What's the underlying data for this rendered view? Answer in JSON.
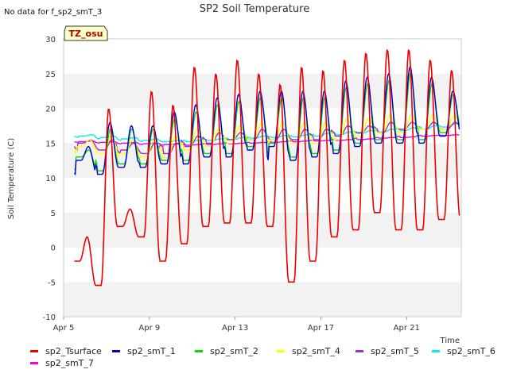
{
  "header": {
    "nodata_note": "No data for f_sp2_smT_3",
    "badge": "TZ_osu"
  },
  "chart_data": {
    "type": "line",
    "title": "SP2 Soil Temperature",
    "xlabel": "Time",
    "ylabel": "Soil Temperature (C)",
    "ylim": [
      -10,
      30
    ],
    "yticks": [
      -10,
      -5,
      0,
      5,
      10,
      15,
      20,
      25,
      30
    ],
    "xlim": [
      "Apr 5",
      "Apr 23"
    ],
    "xticks": [
      "Apr 5",
      "Apr 9",
      "Apr 13",
      "Apr 17",
      "Apr 21"
    ],
    "grid": "horizontal alternating bands",
    "legend_position": "bottom",
    "days_x": [
      "Apr 5",
      "Apr 6",
      "Apr 7",
      "Apr 8",
      "Apr 9",
      "Apr 10",
      "Apr 11",
      "Apr 12",
      "Apr 13",
      "Apr 14",
      "Apr 15",
      "Apr 16",
      "Apr 17",
      "Apr 18",
      "Apr 19",
      "Apr 20",
      "Apr 21",
      "Apr 22"
    ],
    "series": [
      {
        "name": "sp2_Tsurface",
        "color": "#ee0000",
        "daily_min": [
          -2,
          -5.5,
          3,
          1.5,
          -2,
          0.5,
          3,
          3.5,
          3.5,
          3,
          -5,
          -2,
          1.5,
          2.5,
          5,
          2.5,
          2.5,
          4
        ],
        "daily_max": [
          1.5,
          20,
          5.5,
          22.5,
          20.5,
          26,
          25,
          27,
          25,
          23.5,
          26,
          25.5,
          27,
          28,
          28.5,
          28.5,
          27,
          25.5
        ]
      },
      {
        "name": "sp2_smT_1",
        "color": "#0000cc",
        "daily_min": [
          12.5,
          10.5,
          11.5,
          11.5,
          12,
          12,
          13,
          13,
          14,
          14.5,
          12.5,
          13,
          13.5,
          14.5,
          15,
          15,
          15,
          16
        ],
        "daily_max": [
          14.5,
          18,
          17.5,
          17.5,
          19.5,
          20.5,
          21.5,
          22,
          22.5,
          22.5,
          22.5,
          22.5,
          24,
          24.5,
          25,
          26,
          24.5,
          22.5
        ]
      },
      {
        "name": "sp2_smT_2",
        "color": "#00dd00",
        "daily_min": [
          13,
          11,
          12,
          12,
          12.5,
          12.5,
          13.5,
          13.5,
          14.5,
          15,
          13,
          13.5,
          14,
          15,
          15.5,
          15.5,
          15.5,
          16.5
        ],
        "daily_max": [
          14,
          17,
          17,
          17,
          18.5,
          19.5,
          20.5,
          21,
          21.5,
          21.5,
          21.5,
          21.5,
          23,
          23.5,
          24,
          25,
          23.5,
          22
        ]
      },
      {
        "name": "sp2_smT_4",
        "color": "#ffff00",
        "daily_min": [
          14.5,
          13.5,
          13.5,
          13,
          13,
          14,
          14.5,
          15,
          15.5,
          15.5,
          15,
          15,
          15.5,
          16,
          16.5,
          16.5,
          17,
          17
        ],
        "daily_max": [
          15.5,
          16,
          15.5,
          15.5,
          16,
          17,
          17,
          17.5,
          18,
          18,
          18,
          18,
          18.5,
          18.5,
          19,
          19,
          19,
          19
        ]
      },
      {
        "name": "sp2_smT_5",
        "color": "#9932cc",
        "daily_min": [
          15,
          14,
          14,
          13.5,
          13.5,
          14.5,
          15,
          15.5,
          15.5,
          15.5,
          15.5,
          15.5,
          16,
          16.5,
          16.5,
          17,
          17,
          17
        ],
        "daily_max": [
          15.5,
          15.5,
          15,
          15,
          15,
          16,
          16.5,
          16.5,
          17,
          17,
          17,
          17,
          17.5,
          17.5,
          18,
          18,
          18,
          18
        ]
      },
      {
        "name": "sp2_smT_6",
        "color": "#00eeee",
        "daily_min": [
          16,
          15.8,
          15.6,
          15.4,
          15.2,
          15.2,
          15.4,
          15.5,
          15.7,
          15.8,
          15.9,
          16,
          16.2,
          16.4,
          16.6,
          16.8,
          17,
          17.3
        ],
        "daily_max": [
          16.2,
          16,
          15.8,
          15.6,
          15.4,
          15.4,
          15.6,
          15.8,
          16,
          16.1,
          16.2,
          16.4,
          16.6,
          16.8,
          17,
          17.2,
          17.5,
          17.8
        ]
      },
      {
        "name": "sp2_smT_7",
        "color": "#ee00ee",
        "daily_min": [
          15.2,
          15.1,
          15,
          14.9,
          14.8,
          14.7,
          14.8,
          14.9,
          15,
          15.1,
          15.2,
          15.3,
          15.4,
          15.5,
          15.7,
          15.8,
          16,
          16.1
        ],
        "daily_max": [
          15.3,
          15.2,
          15.1,
          15,
          14.9,
          14.8,
          14.9,
          15,
          15.1,
          15.2,
          15.3,
          15.4,
          15.5,
          15.6,
          15.8,
          15.9,
          16.1,
          16.2
        ]
      }
    ]
  }
}
